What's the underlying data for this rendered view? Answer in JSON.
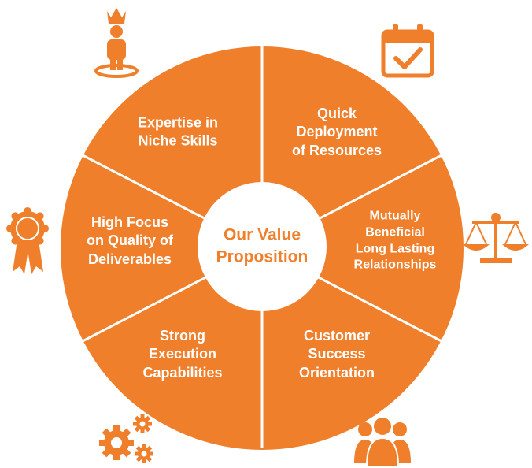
{
  "colors": {
    "segment_fill": "#f07f2c",
    "divider": "#ffffff",
    "center_fill": "#ffffff",
    "center_text": "#f07f2c",
    "icon": "#f07f2c"
  },
  "center": {
    "title": "Our Value\nProposition"
  },
  "segments": [
    {
      "label": "Expertise in\nNiche Skills",
      "icon": "person-with-crown-icon"
    },
    {
      "label": "Quick\nDeployment\nof Resources",
      "icon": "calendar-check-icon"
    },
    {
      "label": "Mutually\nBeneficial\nLong Lasting\nRelationships",
      "icon": "balance-scale-icon"
    },
    {
      "label": "Customer\nSuccess\nOrientation",
      "icon": "people-group-icon"
    },
    {
      "label": "Strong\nExecution\nCapabilities",
      "icon": "gears-icon"
    },
    {
      "label": "High Focus\non Quality of\nDeliverables",
      "icon": "award-ribbon-icon"
    }
  ]
}
